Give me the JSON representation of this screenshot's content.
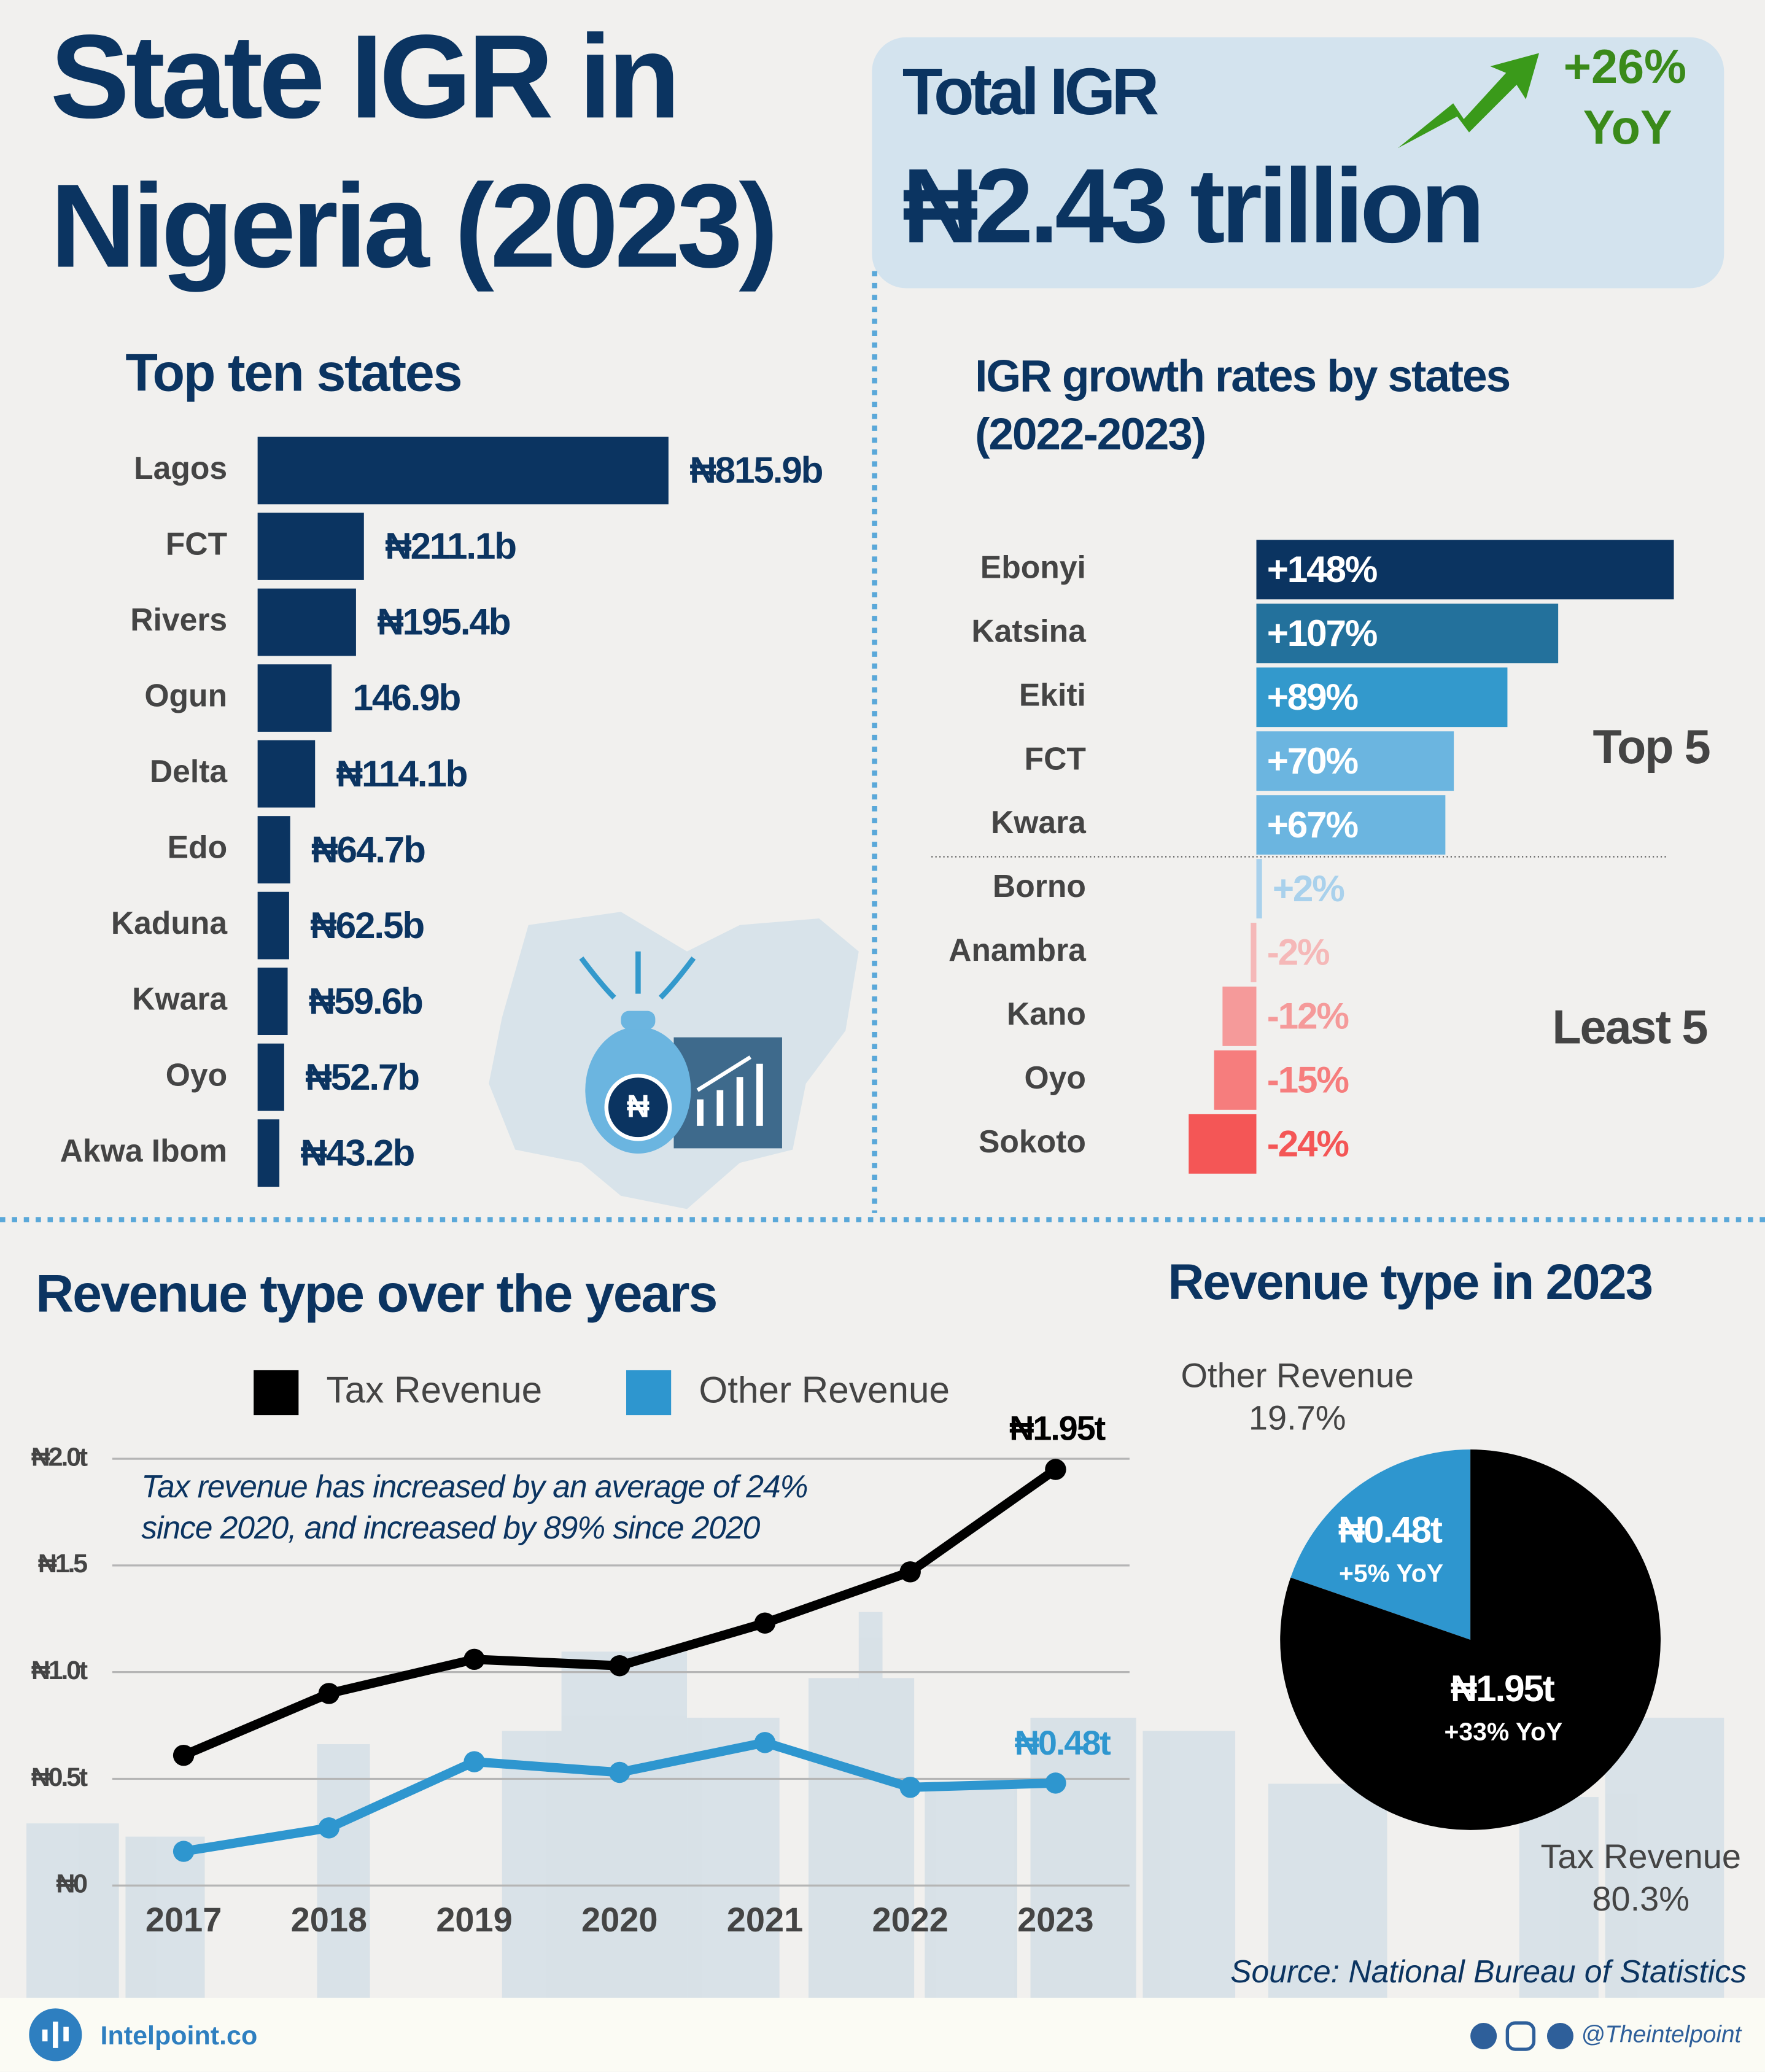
{
  "header": {
    "title": [
      "State IGR in",
      "Nigeria (2023)"
    ],
    "total_label": "Total IGR",
    "total_value": "₦2.43 trillion",
    "growth": [
      "+26%",
      "YoY"
    ]
  },
  "chart_data": [
    {
      "type": "bar",
      "orientation": "horizontal",
      "title": "Top ten states",
      "categories": [
        "Lagos",
        "FCT",
        "Rivers",
        "Ogun",
        "Delta",
        "Edo",
        "Kaduna",
        "Kwara",
        "Oyo",
        "Akwa Ibom"
      ],
      "values": [
        815.9,
        211.1,
        195.4,
        146.9,
        114.1,
        64.7,
        62.5,
        59.6,
        52.7,
        43.2
      ],
      "value_labels": [
        "₦815.9b",
        "₦211.1b",
        "₦195.4b",
        "146.9b",
        "₦114.1b",
        "₦64.7b",
        "₦62.5b",
        "₦59.6b",
        "₦52.7b",
        "₦43.2b"
      ],
      "color": "#0b3461"
    },
    {
      "type": "bar",
      "orientation": "horizontal",
      "title": [
        "IGR growth rates by states",
        "(2022-2023)"
      ],
      "categories": [
        "Ebonyi",
        "Katsina",
        "Ekiti",
        "FCT",
        "Kwara",
        "Borno",
        "Anambra",
        "Kano",
        "Oyo",
        "Sokoto"
      ],
      "values": [
        148,
        107,
        89,
        70,
        67,
        2,
        -2,
        -12,
        -15,
        -24
      ],
      "value_labels": [
        "+148%",
        "+107%",
        "+89%",
        "+70%",
        "+67%",
        "+2%",
        "-2%",
        "-12%",
        "-15%",
        "-24%"
      ],
      "colors": [
        "#0b3461",
        "#23719c",
        "#3399cc",
        "#6bb5e0",
        "#6bb5e0",
        "#a9d1ec",
        "#f5b8b8",
        "#f59a9a",
        "#f67d7d",
        "#f45656"
      ],
      "group_labels": [
        "Top 5",
        "Least 5"
      ]
    },
    {
      "type": "line",
      "title": "Revenue type over the years",
      "categories": [
        "2017",
        "2018",
        "2019",
        "2020",
        "2021",
        "2022",
        "2023"
      ],
      "series": [
        {
          "name": "Tax Revenue",
          "color": "#000000",
          "values": [
            0.61,
            0.9,
            1.06,
            1.03,
            1.23,
            1.47,
            1.95
          ],
          "value_labels": [
            null,
            null,
            null,
            null,
            null,
            null,
            "₦1.95t"
          ]
        },
        {
          "name": "Other Revenue",
          "color": "#2e96cf",
          "values": [
            0.16,
            0.27,
            0.58,
            0.53,
            0.67,
            0.46,
            0.48
          ],
          "value_labels": [
            null,
            null,
            null,
            null,
            null,
            null,
            "₦0.48t"
          ]
        }
      ],
      "ylim": [
        0,
        2.0
      ],
      "yticks": [
        {
          "value": 0,
          "label": "₦0"
        },
        {
          "value": 0.5,
          "label": "₦0.5t"
        },
        {
          "value": 1.0,
          "label": "₦1.0t"
        },
        {
          "value": 1.5,
          "label": "₦1.5"
        },
        {
          "value": 2.0,
          "label": "₦2.0t"
        }
      ],
      "grid": true,
      "legend": "top",
      "annotation": [
        "Tax revenue has increased by an average of 24%",
        "since 2020, and increased by 89% since 2020"
      ]
    },
    {
      "type": "pie",
      "title": "Revenue type in 2023",
      "categories": [
        "Other Revenue",
        "Tax Revenue"
      ],
      "values": [
        19.7,
        80.3
      ],
      "value_labels": [
        "19.7%",
        "80.3%"
      ],
      "colors": [
        "#2e96cf",
        "#000000"
      ],
      "slice_labels": [
        "₦0.48t",
        "₦1.95t"
      ],
      "slice_notes": [
        "+5% YoY",
        "+33% YoY"
      ]
    }
  ],
  "footer": {
    "source": "Source: National Bureau of Statistics",
    "brand": "Intelpoint.co",
    "handle": "@Theintelpoint"
  }
}
